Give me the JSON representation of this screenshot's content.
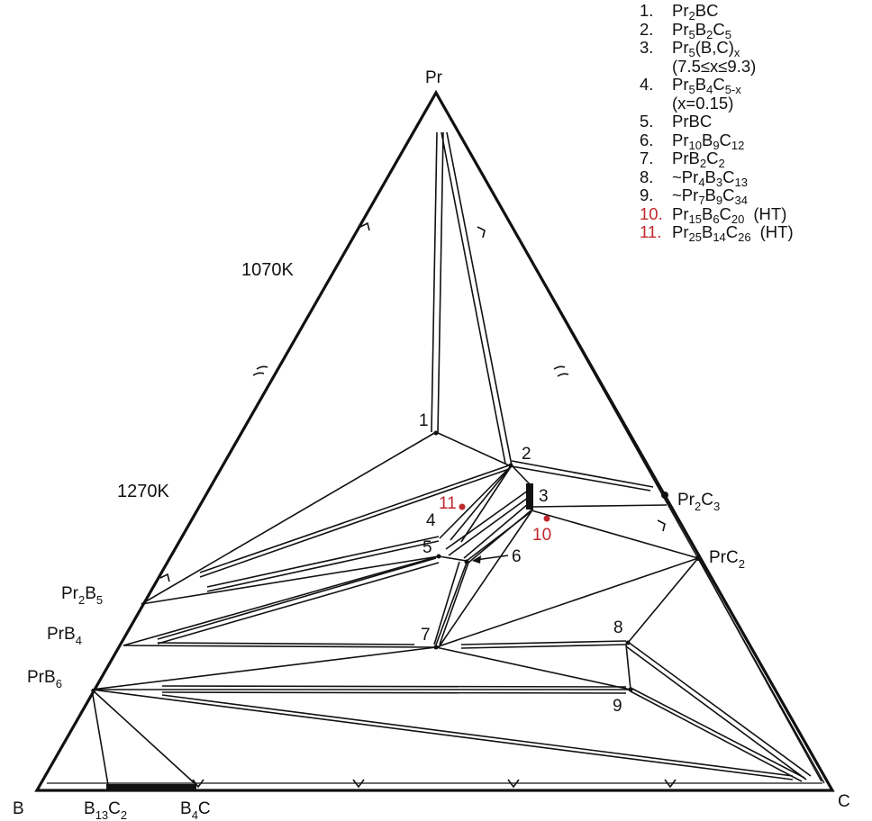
{
  "vertices": {
    "top": "Pr",
    "left": "B",
    "right": "C"
  },
  "temperatures": {
    "upper": "1070K",
    "lower": "1270K"
  },
  "binary_labels": {
    "pr2b5": [
      "Pr",
      "2",
      "B",
      "5"
    ],
    "prb4": [
      "PrB",
      "4"
    ],
    "prb6": [
      "PrB",
      "6"
    ],
    "b13c2": [
      "B",
      "13",
      "C",
      "2"
    ],
    "b4c": [
      "B",
      "4",
      "C"
    ],
    "pr2c3": [
      "Pr",
      "2",
      "C",
      "3"
    ],
    "prc2": [
      "PrC",
      "2"
    ]
  },
  "point_numbers": {
    "p1": "1",
    "p2": "2",
    "p3": "3",
    "p4": "4",
    "p5": "5",
    "p6": "6",
    "p7": "7",
    "p8": "8",
    "p9": "9",
    "p10": "10",
    "p11": "11"
  },
  "legend": [
    {
      "num": "1.",
      "parts": [
        [
          "Pr",
          ""
        ],
        [
          "2",
          "sub"
        ],
        [
          "BC",
          ""
        ]
      ]
    },
    {
      "num": "2.",
      "parts": [
        [
          "Pr",
          ""
        ],
        [
          "5",
          "sub"
        ],
        [
          "B",
          ""
        ],
        [
          "2",
          "sub"
        ],
        [
          "C",
          ""
        ],
        [
          "5",
          "sub"
        ]
      ]
    },
    {
      "num": "3.",
      "parts": [
        [
          "Pr",
          ""
        ],
        [
          "5",
          "sub"
        ],
        [
          "(B,C)",
          ""
        ],
        [
          "x",
          "sub"
        ]
      ],
      "note": "(7.5≤x≤9.3)"
    },
    {
      "num": "4.",
      "parts": [
        [
          "Pr",
          ""
        ],
        [
          "5",
          "sub"
        ],
        [
          "B",
          ""
        ],
        [
          "4",
          "sub"
        ],
        [
          "C",
          ""
        ],
        [
          "5-x",
          "sub"
        ]
      ],
      "note": "(x=0.15)"
    },
    {
      "num": "5.",
      "parts": [
        [
          "PrBC",
          ""
        ]
      ]
    },
    {
      "num": "6.",
      "parts": [
        [
          "Pr",
          ""
        ],
        [
          "10",
          "sub"
        ],
        [
          "B",
          ""
        ],
        [
          "9",
          "sub"
        ],
        [
          "C",
          ""
        ],
        [
          "12",
          "sub"
        ]
      ]
    },
    {
      "num": "7.",
      "parts": [
        [
          "PrB",
          ""
        ],
        [
          "2",
          "sub"
        ],
        [
          "C",
          ""
        ],
        [
          "2",
          "sub"
        ]
      ]
    },
    {
      "num": "8.",
      "parts": [
        [
          "~Pr",
          ""
        ],
        [
          "4",
          "sub"
        ],
        [
          "B",
          ""
        ],
        [
          "3",
          "sub"
        ],
        [
          "C",
          ""
        ],
        [
          "13",
          "sub"
        ]
      ]
    },
    {
      "num": "9.",
      "parts": [
        [
          "~Pr",
          ""
        ],
        [
          "7",
          "sub"
        ],
        [
          "B",
          ""
        ],
        [
          "9",
          "sub"
        ],
        [
          "C",
          ""
        ],
        [
          "34",
          "sub"
        ]
      ]
    },
    {
      "num": "10.",
      "red": true,
      "parts": [
        [
          "Pr",
          ""
        ],
        [
          "15",
          "sub"
        ],
        [
          "B",
          ""
        ],
        [
          "6",
          "sub"
        ],
        [
          "C",
          ""
        ],
        [
          "20",
          "sub"
        ]
      ],
      "ht": "(HT)"
    },
    {
      "num": "11.",
      "red": true,
      "parts": [
        [
          "Pr",
          ""
        ],
        [
          "25",
          "sub"
        ],
        [
          "B",
          ""
        ],
        [
          "14",
          "sub"
        ],
        [
          "C",
          ""
        ],
        [
          "26",
          "sub"
        ]
      ],
      "ht": "(HT)"
    }
  ],
  "colors": {
    "line": "#111111",
    "highlight": "#c0282d"
  }
}
